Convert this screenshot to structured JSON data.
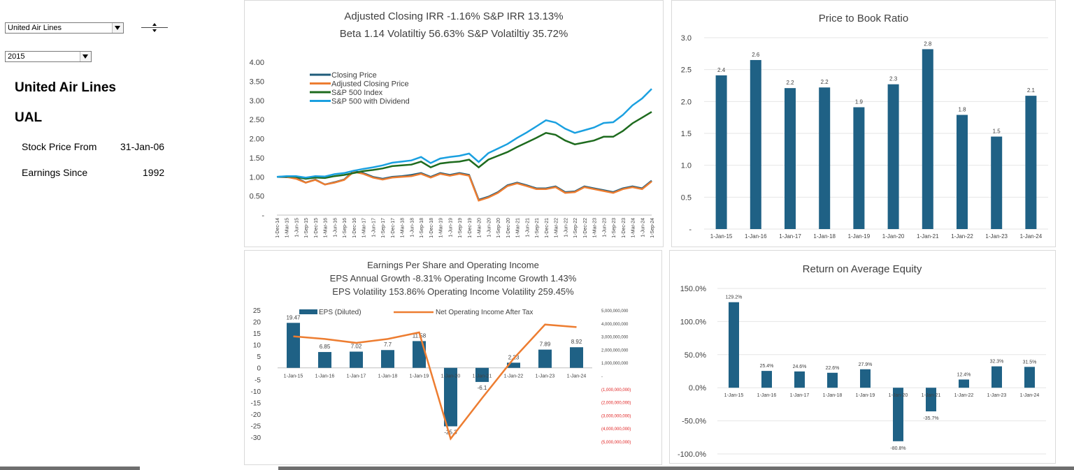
{
  "controls": {
    "company_select": "United Air Lines",
    "year_select": "2015"
  },
  "summary": {
    "company_name": "United Air Lines",
    "ticker": "UAL",
    "stock_price_label": "Stock Price From",
    "stock_price_value": "31-Jan-06",
    "earnings_label": "Earnings Since",
    "earnings_value": "1992"
  },
  "chart_data": [
    {
      "type": "line",
      "title": "Adjusted Closing IRR -1.16% S&P IRR 13.13%",
      "subtitle": "Beta  1.14  Volatiltiy 56.63% S&P Volatiltiy 35.72%",
      "y_ticks": [
        "4.00",
        "3.50",
        "3.00",
        "2.50",
        "2.00",
        "1.50",
        "1.00",
        "0.50",
        "-"
      ],
      "ylim": [
        0,
        4
      ],
      "x_ticks": [
        "1-Dec-14",
        "1-Mar-15",
        "1-Jun-15",
        "1-Sep-15",
        "1-Dec-15",
        "1-Mar-16",
        "1-Jun-16",
        "1-Sep-16",
        "1-Dec-16",
        "1-Mar-17",
        "1-Jun-17",
        "1-Sep-17",
        "1-Dec-17",
        "1-Mar-18",
        "1-Jun-18",
        "1-Sep-18",
        "1-Dec-18",
        "1-Mar-19",
        "1-Jun-19",
        "1-Sep-19",
        "1-Dec-19",
        "1-Mar-20",
        "1-Jun-20",
        "1-Sep-20",
        "1-Dec-20",
        "1-Mar-21",
        "1-Jun-21",
        "1-Sep-21",
        "1-Dec-21",
        "1-Mar-22",
        "1-Jun-22",
        "1-Sep-22",
        "1-Dec-22",
        "1-Mar-23",
        "1-Jun-23",
        "1-Sep-23",
        "1-Dec-23",
        "1-Mar-24",
        "1-Jun-24",
        "1-Sep-24"
      ],
      "legend_position": "top-left",
      "series": [
        {
          "name": "Closing Price",
          "color": "#1f5c7a",
          "values": [
            1.0,
            0.99,
            0.98,
            0.85,
            0.93,
            0.8,
            0.86,
            0.93,
            1.15,
            1.1,
            1.0,
            0.95,
            1.0,
            1.02,
            1.05,
            1.1,
            1.0,
            1.1,
            1.05,
            1.1,
            1.05,
            0.4,
            0.48,
            0.6,
            0.78,
            0.85,
            0.78,
            0.7,
            0.7,
            0.75,
            0.6,
            0.62,
            0.75,
            0.7,
            0.65,
            0.6,
            0.7,
            0.75,
            0.7,
            0.9
          ]
        },
        {
          "name": "Adjusted Closing Price",
          "color": "#ed7d31",
          "values": [
            1.0,
            1.0,
            0.95,
            0.85,
            0.92,
            0.8,
            0.85,
            0.92,
            1.13,
            1.08,
            0.98,
            0.93,
            0.98,
            1.0,
            1.02,
            1.08,
            0.98,
            1.08,
            1.03,
            1.08,
            1.03,
            0.38,
            0.46,
            0.58,
            0.76,
            0.83,
            0.76,
            0.68,
            0.68,
            0.73,
            0.58,
            0.6,
            0.73,
            0.68,
            0.63,
            0.58,
            0.68,
            0.73,
            0.68,
            0.88
          ]
        },
        {
          "name": "S&P 500 Index",
          "color": "#1e6b1e",
          "values": [
            1.0,
            1.01,
            1.0,
            0.95,
            0.98,
            0.97,
            1.02,
            1.05,
            1.1,
            1.15,
            1.18,
            1.22,
            1.28,
            1.3,
            1.32,
            1.4,
            1.25,
            1.35,
            1.38,
            1.4,
            1.45,
            1.25,
            1.45,
            1.55,
            1.65,
            1.78,
            1.9,
            2.02,
            2.15,
            2.1,
            1.95,
            1.85,
            1.9,
            1.95,
            2.05,
            2.05,
            2.2,
            2.4,
            2.55,
            2.7
          ]
        },
        {
          "name": "S&P 500 with Dividend",
          "color": "#1aa0e0",
          "values": [
            1.0,
            1.02,
            1.02,
            0.98,
            1.02,
            1.01,
            1.07,
            1.1,
            1.16,
            1.21,
            1.25,
            1.3,
            1.37,
            1.4,
            1.43,
            1.52,
            1.36,
            1.48,
            1.52,
            1.55,
            1.61,
            1.39,
            1.62,
            1.74,
            1.86,
            2.02,
            2.16,
            2.32,
            2.48,
            2.42,
            2.26,
            2.15,
            2.22,
            2.29,
            2.41,
            2.43,
            2.62,
            2.87,
            3.05,
            3.3
          ]
        }
      ]
    },
    {
      "type": "bar",
      "title": "Price to Book Ratio",
      "categories": [
        "1-Jan-15",
        "1-Jan-16",
        "1-Jan-17",
        "1-Jan-18",
        "1-Jan-19",
        "1-Jan-20",
        "1-Jan-21",
        "1-Jan-22",
        "1-Jan-23",
        "1-Jan-24"
      ],
      "values": [
        2.4,
        2.6,
        2.2,
        2.2,
        1.9,
        2.3,
        2.8,
        1.8,
        1.5,
        2.1
      ],
      "exact_values": [
        2.41,
        2.65,
        2.21,
        2.22,
        1.91,
        2.27,
        2.82,
        1.79,
        1.45,
        2.09
      ],
      "y_ticks": [
        "3.0",
        "2.5",
        "2.0",
        "1.5",
        "1.0",
        "0.5",
        "-"
      ],
      "ylim": [
        0,
        3
      ],
      "color": "#1f6185"
    },
    {
      "type": "bar",
      "title": "Earnings Per Share and Operating Income",
      "subtitle1": "EPS Annual Growth -8.31% Operating Income Growth 1.43%",
      "subtitle2": "EPS Volatility 153.86% Operating Income Volatility 259.45%",
      "categories": [
        "1-Jan-15",
        "1-Jan-16",
        "1-Jan-17",
        "1-Jan-18",
        "1-Jan-19",
        "1-Jan-20",
        "1-Jan-21",
        "1-Jan-22",
        "1-Jan-23",
        "1-Jan-24"
      ],
      "y_ticks": [
        "25",
        "20",
        "15",
        "10",
        "5",
        "0",
        "-5",
        "-10",
        "-15",
        "-20",
        "-25",
        "-30"
      ],
      "ylim": [
        -30,
        25
      ],
      "y2_ticks": [
        "5,000,000,000",
        "4,000,000,000",
        "3,000,000,000",
        "2,000,000,000",
        "1,000,000,000",
        "-",
        "(1,000,000,000)",
        "(2,000,000,000)",
        "(3,000,000,000)",
        "(4,000,000,000)",
        "(5,000,000,000)"
      ],
      "y2lim": [
        -5000000000,
        5000000000
      ],
      "legend_position": "top",
      "series": [
        {
          "name": "EPS (Diluted)",
          "type": "bar",
          "color": "#1f6185",
          "values": [
            19.47,
            6.85,
            7.02,
            7.7,
            11.58,
            -25.3,
            -6.1,
            2.23,
            7.89,
            8.92
          ],
          "labels": [
            "19.47",
            "6.85",
            "7.02",
            "7.7",
            "11.58",
            "-25.3",
            "-6.1",
            "2.23",
            "7.89",
            "8.92"
          ]
        },
        {
          "name": "Net Operating Income After Tax",
          "type": "line",
          "axis": "secondary",
          "color": "#ed7d31",
          "values": [
            3000000000,
            2800000000,
            2500000000,
            2800000000,
            3300000000,
            -4800000000,
            -1700000000,
            1300000000,
            3900000000,
            3700000000
          ]
        }
      ]
    },
    {
      "type": "bar",
      "title": "Return on Average Equity",
      "categories": [
        "1-Jan-15",
        "1-Jan-16",
        "1-Jan-17",
        "1-Jan-18",
        "1-Jan-19",
        "1-Jan-20",
        "1-Jan-21",
        "1-Jan-22",
        "1-Jan-23",
        "1-Jan-24"
      ],
      "values": [
        129.2,
        25.4,
        24.6,
        22.6,
        27.9,
        -80.8,
        -35.7,
        12.4,
        32.3,
        31.5
      ],
      "labels": [
        "129.2%",
        "25.4%",
        "24.6%",
        "22.6%",
        "27.9%",
        "-80.8%",
        "-35.7%",
        "12.4%",
        "32.3%",
        "31.5%"
      ],
      "y_ticks": [
        "150.0%",
        "100.0%",
        "50.0%",
        "0.0%",
        "-50.0%",
        "-100.0%"
      ],
      "ylim": [
        -100,
        150
      ],
      "color": "#1f6185"
    }
  ]
}
